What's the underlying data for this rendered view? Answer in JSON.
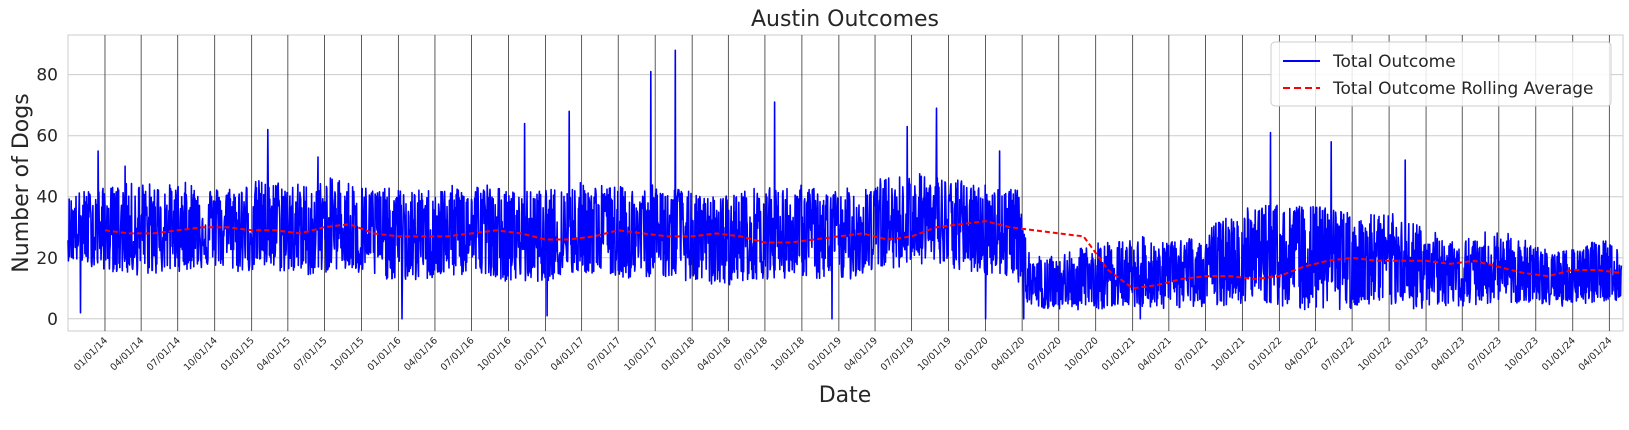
{
  "chart_data": {
    "type": "line",
    "title": "Austin Outcomes",
    "xlabel": "Date",
    "ylabel": "Number of Dogs",
    "x_range": [
      "2013-10-01",
      "2024-05-05"
    ],
    "ylim": [
      -4,
      93
    ],
    "y_ticks": [
      0,
      20,
      40,
      60,
      80
    ],
    "x_ticks": [
      "01/01/14",
      "04/01/14",
      "07/01/14",
      "10/01/14",
      "01/01/15",
      "04/01/15",
      "07/01/15",
      "10/01/15",
      "01/01/16",
      "04/01/16",
      "07/01/16",
      "10/01/16",
      "01/01/17",
      "04/01/17",
      "07/01/17",
      "10/01/17",
      "01/01/18",
      "04/01/18",
      "07/01/18",
      "10/01/18",
      "01/01/19",
      "04/01/19",
      "07/01/19",
      "10/01/19",
      "01/01/20",
      "04/01/20",
      "07/01/20",
      "10/01/20",
      "01/01/21",
      "04/01/21",
      "07/01/21",
      "10/01/21",
      "01/01/22",
      "04/01/22",
      "07/01/22",
      "10/01/22",
      "01/01/23",
      "04/01/23",
      "07/01/23",
      "10/01/23",
      "01/01/24",
      "04/01/24"
    ],
    "grid": true,
    "legend_position": "top-right",
    "series": [
      {
        "name": "Total Outcome",
        "style": "solid",
        "color": "#0000ff",
        "note": "daily counts, shown as a noisy band",
        "x": [
          "2013-10-01",
          "2013-11-01",
          "2014-01-01",
          "2014-02-01",
          "2014-04-01",
          "2014-06-01",
          "2014-08-01",
          "2014-10-01",
          "2014-12-01",
          "2015-02-01",
          "2015-04-01",
          "2015-06-01",
          "2015-08-01",
          "2015-10-01",
          "2015-12-01",
          "2016-02-01",
          "2016-04-01",
          "2016-06-01",
          "2016-08-01",
          "2016-10-01",
          "2016-12-01",
          "2017-02-01",
          "2017-04-01",
          "2017-06-01",
          "2017-08-01",
          "2017-10-01",
          "2017-12-01",
          "2018-02-01",
          "2018-04-01",
          "2018-06-01",
          "2018-08-01",
          "2018-10-01",
          "2018-12-01",
          "2019-02-01",
          "2019-04-01",
          "2019-06-01",
          "2019-08-01",
          "2019-10-01",
          "2019-12-01",
          "2020-02-01",
          "2020-03-20",
          "2020-04-15",
          "2020-06-01",
          "2020-08-01",
          "2020-10-01",
          "2020-12-01",
          "2021-02-01",
          "2021-04-01",
          "2021-06-01",
          "2021-08-01",
          "2021-10-01",
          "2021-12-01",
          "2022-02-01",
          "2022-04-01",
          "2022-06-01",
          "2022-08-01",
          "2022-10-01",
          "2022-12-01",
          "2023-02-01",
          "2023-04-01",
          "2023-06-01",
          "2023-08-01",
          "2023-10-01",
          "2023-12-01",
          "2024-02-01",
          "2024-04-01",
          "2024-05-01"
        ],
        "values": [
          30,
          29,
          29,
          28,
          28,
          29,
          30,
          30,
          29,
          30,
          29,
          28,
          30,
          28,
          27,
          26,
          27,
          28,
          29,
          26,
          26,
          27,
          29,
          28,
          27,
          28,
          27,
          25,
          25,
          27,
          27,
          28,
          26,
          27,
          30,
          31,
          32,
          30,
          29,
          28,
          27,
          13,
          10,
          11,
          13,
          14,
          14,
          13,
          14,
          17,
          19,
          20,
          19,
          19,
          19,
          18,
          19,
          17,
          15,
          14,
          16,
          16,
          13,
          12,
          14,
          15,
          15
        ],
        "upper": [
          40,
          42,
          43,
          44,
          45,
          44,
          45,
          43,
          44,
          46,
          45,
          44,
          47,
          44,
          43,
          42,
          43,
          44,
          45,
          42,
          42,
          43,
          45,
          44,
          43,
          44,
          43,
          40,
          41,
          43,
          43,
          44,
          42,
          43,
          46,
          47,
          48,
          46,
          45,
          44,
          43,
          22,
          20,
          22,
          25,
          26,
          27,
          25,
          27,
          32,
          36,
          38,
          37,
          37,
          36,
          34,
          35,
          32,
          28,
          26,
          29,
          28,
          24,
          22,
          25,
          26,
          24
        ],
        "lower": [
          19,
          18,
          16,
          15,
          14,
          15,
          16,
          17,
          15,
          16,
          15,
          14,
          16,
          14,
          13,
          12,
          13,
          14,
          15,
          12,
          12,
          13,
          15,
          14,
          13,
          14,
          13,
          11,
          11,
          13,
          13,
          14,
          12,
          13,
          16,
          17,
          18,
          16,
          15,
          14,
          13,
          5,
          3,
          3,
          3,
          4,
          4,
          3,
          4,
          4,
          5,
          5,
          3,
          3,
          3,
          3,
          3,
          3,
          4,
          4,
          5,
          5,
          4,
          4,
          5,
          6,
          6
        ],
        "peaks": [
          {
            "x": "2013-12-15",
            "y": 55
          },
          {
            "x": "2014-02-20",
            "y": 50
          },
          {
            "x": "2015-02-10",
            "y": 62
          },
          {
            "x": "2015-06-15",
            "y": 53
          },
          {
            "x": "2016-11-10",
            "y": 64
          },
          {
            "x": "2017-03-01",
            "y": 68
          },
          {
            "x": "2017-09-20",
            "y": 81
          },
          {
            "x": "2017-11-20",
            "y": 88
          },
          {
            "x": "2018-07-25",
            "y": 71
          },
          {
            "x": "2019-06-20",
            "y": 63
          },
          {
            "x": "2019-09-01",
            "y": 69
          },
          {
            "x": "2020-02-05",
            "y": 55
          },
          {
            "x": "2021-12-10",
            "y": 61
          },
          {
            "x": "2022-05-10",
            "y": 58
          },
          {
            "x": "2022-11-10",
            "y": 52
          }
        ],
        "troughs": [
          {
            "x": "2013-11-01",
            "y": 2
          },
          {
            "x": "2016-01-10",
            "y": 0
          },
          {
            "x": "2017-01-05",
            "y": 1
          },
          {
            "x": "2018-12-15",
            "y": 0
          },
          {
            "x": "2020-01-01",
            "y": 0
          },
          {
            "x": "2020-04-05",
            "y": 0
          },
          {
            "x": "2021-01-20",
            "y": 0
          }
        ]
      },
      {
        "name": "Total Outcome Rolling Average",
        "style": "dashed",
        "color": "#ff0000",
        "x": [
          "2014-01-01",
          "2014-03-01",
          "2014-05-01",
          "2014-07-01",
          "2014-09-01",
          "2014-11-01",
          "2015-01-01",
          "2015-03-01",
          "2015-05-01",
          "2015-07-01",
          "2015-09-01",
          "2015-11-01",
          "2016-01-01",
          "2016-03-01",
          "2016-05-01",
          "2016-07-01",
          "2016-09-01",
          "2016-11-01",
          "2017-01-01",
          "2017-03-01",
          "2017-05-01",
          "2017-07-01",
          "2017-09-01",
          "2017-11-01",
          "2018-01-01",
          "2018-03-01",
          "2018-05-01",
          "2018-07-01",
          "2018-09-01",
          "2018-11-01",
          "2019-01-01",
          "2019-03-01",
          "2019-05-01",
          "2019-07-01",
          "2019-09-01",
          "2019-11-01",
          "2020-01-01",
          "2020-03-01",
          "2020-05-01",
          "2020-07-01",
          "2020-09-01",
          "2020-11-01",
          "2021-01-01",
          "2021-03-01",
          "2021-05-01",
          "2021-07-01",
          "2021-09-01",
          "2021-11-01",
          "2022-01-01",
          "2022-03-01",
          "2022-05-01",
          "2022-07-01",
          "2022-09-01",
          "2022-11-01",
          "2023-01-01",
          "2023-03-01",
          "2023-05-01",
          "2023-07-01",
          "2023-09-01",
          "2023-11-01",
          "2024-01-01",
          "2024-03-01",
          "2024-05-01"
        ],
        "values": [
          29,
          28,
          28,
          29,
          30,
          30,
          29,
          29,
          28,
          30,
          31,
          28,
          27,
          27,
          27,
          28,
          29,
          28,
          26,
          26,
          27,
          29,
          28,
          27,
          27,
          28,
          27,
          25,
          25,
          26,
          27,
          28,
          26,
          27,
          30,
          31,
          32,
          30,
          29,
          28,
          27,
          16,
          10,
          11,
          13,
          14,
          14,
          13,
          14,
          17,
          19,
          20,
          19,
          19,
          19,
          18,
          19,
          17,
          15,
          14,
          16,
          16,
          15
        ]
      }
    ]
  }
}
